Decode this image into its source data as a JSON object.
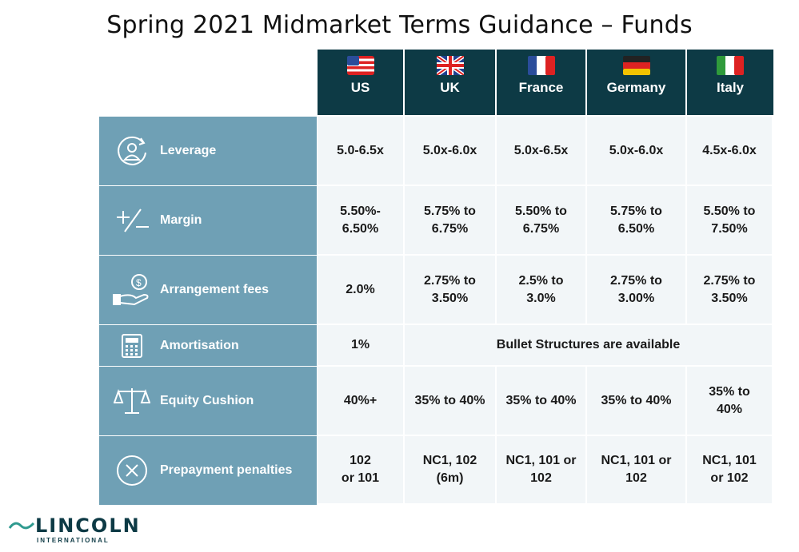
{
  "title": "Spring 2021 Midmarket Terms Guidance – Funds",
  "columns": [
    {
      "name": "US",
      "flag": "us-flag-icon"
    },
    {
      "name": "UK",
      "flag": "uk-flag-icon"
    },
    {
      "name": "France",
      "flag": "france-flag-icon"
    },
    {
      "name": "Germany",
      "flag": "germany-flag-icon"
    },
    {
      "name": "Italy",
      "flag": "italy-flag-icon"
    }
  ],
  "rows": [
    {
      "label": "Leverage",
      "icon": "person-cycle-icon",
      "values": [
        "5.0-6.5x",
        "5.0x-6.0x",
        "5.0x-6.5x",
        "5.0x-6.0x",
        "4.5x-6.0x"
      ]
    },
    {
      "label": "Margin",
      "icon": "plus-minus-icon",
      "values": [
        "5.50%-\n6.50%",
        "5.75% to\n6.75%",
        "5.50% to\n6.75%",
        "5.75% to\n6.50%",
        "5.50% to\n7.50%"
      ]
    },
    {
      "label": "Arrangement fees",
      "icon": "hand-coin-icon",
      "values": [
        "2.0%",
        "2.75% to\n3.50%",
        "2.5% to\n3.0%",
        "2.75% to\n3.00%",
        "2.75% to\n3.50%"
      ]
    },
    {
      "label": "Amortisation",
      "icon": "calculator-icon",
      "values": [
        "1%",
        "Bullet Structures are available"
      ]
    },
    {
      "label": "Equity Cushion",
      "icon": "scales-icon",
      "values": [
        "40%+",
        "35% to 40%",
        "35% to 40%",
        "35% to 40%",
        "35% to\n40%"
      ]
    },
    {
      "label": "Prepayment penalties",
      "icon": "x-circle-icon",
      "values": [
        "102\nor 101",
        "NC1, 102\n(6m)",
        "NC1, 101 or\n102",
        "NC1, 101 or\n102",
        "NC1, 101\nor 102"
      ]
    }
  ],
  "logo": {
    "name": "LINCOLN",
    "sub": "INTERNATIONAL"
  },
  "colors": {
    "header": "#0d3a45",
    "label": "#6fa0b5",
    "cell": "#f2f6f8"
  }
}
